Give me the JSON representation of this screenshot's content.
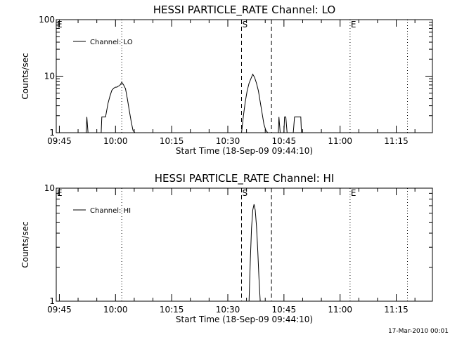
{
  "footer": {
    "timestamp": "17-Mar-2010 00:01"
  },
  "chart_data": [
    {
      "type": "line",
      "title": "HESSI PARTICLE_RATE Channel: LO",
      "xlabel": "Start Time (18-Sep-09 09:44:10)",
      "ylabel": "Counts/sec",
      "yscale": "log",
      "ylim": [
        1,
        100
      ],
      "xlim": [
        "09:44:10",
        "11:24:40"
      ],
      "xticks": [
        "09:45",
        "10:00",
        "10:15",
        "10:30",
        "10:45",
        "11:00",
        "11:15"
      ],
      "yticks": [
        1,
        10,
        100
      ],
      "ytick_labels": [
        "1",
        "10",
        "100"
      ],
      "legend": {
        "label": "Channel: LO",
        "placement": "top-left"
      },
      "vlines": [
        {
          "x": "10:01:40",
          "style": "dotted"
        },
        {
          "x": "10:33:40",
          "style": "dashed",
          "label": "S"
        },
        {
          "x": "10:41:40",
          "style": "dashed"
        },
        {
          "x": "11:02:40",
          "style": "dotted",
          "label": "E"
        },
        {
          "x": "11:18:00",
          "style": "dotted"
        }
      ],
      "edge_labels": [
        {
          "label": "E",
          "x": "09:44:10"
        }
      ],
      "series": [
        {
          "name": "Channel: LO",
          "x": [
            "09:52:10",
            "09:52:20",
            "09:52:40",
            "09:53:00",
            "09:56:10",
            "09:56:20",
            "09:57:20",
            "09:58:00",
            "09:58:30",
            "09:59:00",
            "09:59:30",
            "10:00:00",
            "10:00:20",
            "10:00:50",
            "10:01:10",
            "10:01:40",
            "10:02:10",
            "10:02:40",
            "10:03:10",
            "10:03:40",
            "10:04:10",
            "10:04:40",
            "10:05:10",
            "10:05:30",
            "10:33:40",
            "10:34:10",
            "10:34:40",
            "10:35:10",
            "10:35:40",
            "10:36:10",
            "10:36:40",
            "10:37:10",
            "10:37:40",
            "10:38:10",
            "10:38:40",
            "10:39:10",
            "10:39:40",
            "10:40:10",
            "10:40:40",
            "10:43:30",
            "10:43:40",
            "10:44:00",
            "10:44:20",
            "10:45:00",
            "10:45:10",
            "10:45:30",
            "10:45:50",
            "10:47:30",
            "10:47:50",
            "10:48:10",
            "10:48:20",
            "10:48:40",
            "10:49:30",
            "10:49:40"
          ],
          "y": [
            1,
            1.9,
            1,
            1,
            1,
            1.9,
            1.9,
            3.3,
            4.4,
            5.6,
            6.1,
            6.4,
            6.4,
            6.7,
            6.9,
            7.8,
            7.0,
            6.0,
            4.0,
            2.5,
            1.6,
            1.1,
            1,
            1,
            1,
            2.0,
            3.5,
            5.5,
            7.5,
            9.0,
            10.8,
            9.5,
            7.5,
            5.5,
            3.5,
            2.2,
            1.4,
            1.1,
            1,
            1,
            1.9,
            1,
            1,
            1,
            1.9,
            1.9,
            1,
            1,
            1.9,
            1.9,
            1.9,
            1.9,
            1.9,
            1
          ]
        }
      ]
    },
    {
      "type": "line",
      "title": "HESSI PARTICLE_RATE Channel: HI",
      "xlabel": "Start Time (18-Sep-09 09:44:10)",
      "ylabel": "Counts/sec",
      "yscale": "log",
      "ylim": [
        1,
        10
      ],
      "xlim": [
        "09:44:10",
        "11:24:40"
      ],
      "xticks": [
        "09:45",
        "10:00",
        "10:15",
        "10:30",
        "10:45",
        "11:00",
        "11:15"
      ],
      "yticks": [
        1,
        10
      ],
      "ytick_labels": [
        "1",
        "10"
      ],
      "legend": {
        "label": "Channel: HI",
        "placement": "top-left"
      },
      "vlines": [
        {
          "x": "10:01:40",
          "style": "dotted"
        },
        {
          "x": "10:33:40",
          "style": "dashed",
          "label": "S"
        },
        {
          "x": "10:41:40",
          "style": "dashed"
        },
        {
          "x": "11:02:40",
          "style": "dotted",
          "label": "E"
        },
        {
          "x": "11:18:00",
          "style": "dotted"
        }
      ],
      "edge_labels": [
        {
          "label": "E",
          "x": "09:44:10"
        }
      ],
      "series": [
        {
          "name": "Channel: HI",
          "x": [
            "10:35:40",
            "10:36:00",
            "10:36:20",
            "10:36:40",
            "10:37:00",
            "10:37:20",
            "10:37:40",
            "10:38:00",
            "10:38:20",
            "10:38:40"
          ],
          "y": [
            1,
            2.2,
            4.4,
            6.4,
            7.2,
            6.4,
            4.6,
            2.8,
            1.6,
            1
          ]
        }
      ]
    }
  ]
}
